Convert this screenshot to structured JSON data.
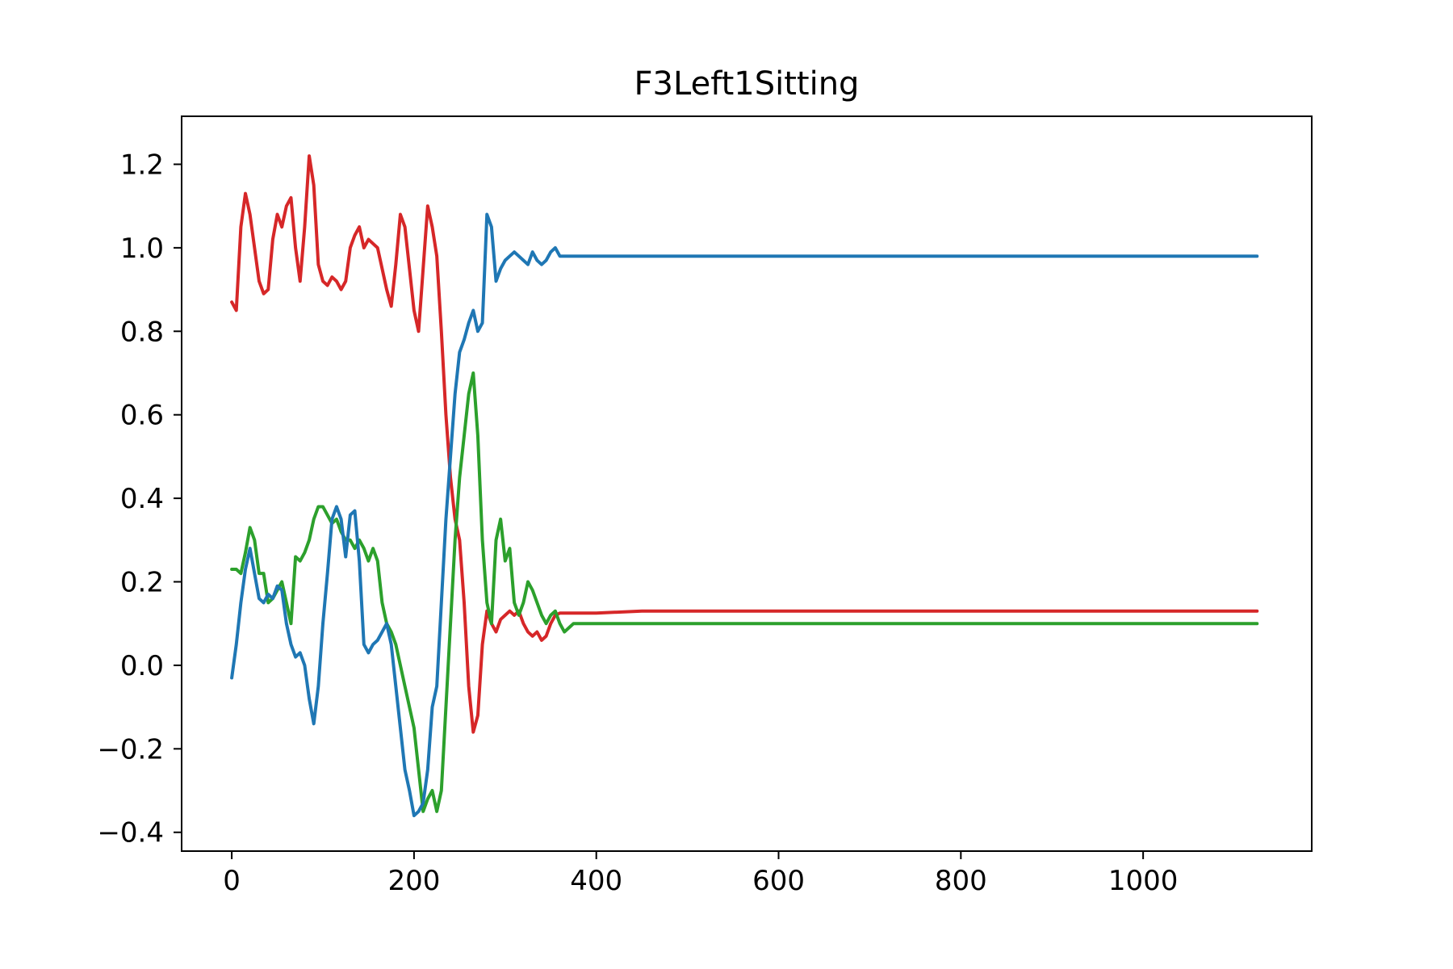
{
  "chart_data": {
    "type": "line",
    "title": "F3Left1Sitting",
    "xlabel": "",
    "ylabel": "",
    "xlim": [
      -55,
      1185
    ],
    "ylim": [
      -0.445,
      1.315
    ],
    "xticks": [
      0,
      200,
      400,
      600,
      800,
      1000
    ],
    "yticks": [
      -0.4,
      -0.2,
      0.0,
      0.2,
      0.4,
      0.6,
      0.8,
      1.0,
      1.2
    ],
    "ytick_labels": [
      "−0.4",
      "−0.2",
      "0.0",
      "0.2",
      "0.4",
      "0.6",
      "0.8",
      "1.0",
      "1.2"
    ],
    "grid": false,
    "legend": "none",
    "series": [
      {
        "color": "#d62728",
        "x": [
          0,
          5,
          10,
          15,
          20,
          25,
          30,
          35,
          40,
          45,
          50,
          55,
          60,
          65,
          70,
          75,
          80,
          85,
          90,
          95,
          100,
          105,
          110,
          115,
          120,
          125,
          130,
          135,
          140,
          145,
          150,
          155,
          160,
          165,
          170,
          175,
          180,
          185,
          190,
          195,
          200,
          205,
          210,
          215,
          220,
          225,
          230,
          235,
          240,
          245,
          250,
          255,
          260,
          265,
          270,
          275,
          280,
          285,
          290,
          295,
          300,
          305,
          310,
          315,
          320,
          325,
          330,
          335,
          340,
          345,
          350,
          355,
          360,
          365,
          370,
          375,
          380,
          390,
          400,
          450,
          500,
          550,
          600,
          650,
          700,
          750,
          800,
          850,
          900,
          950,
          1000,
          1050,
          1100,
          1125
        ],
        "values": [
          0.87,
          0.85,
          1.05,
          1.13,
          1.08,
          1.0,
          0.92,
          0.89,
          0.9,
          1.02,
          1.08,
          1.05,
          1.1,
          1.12,
          1.0,
          0.92,
          1.05,
          1.22,
          1.15,
          0.96,
          0.92,
          0.91,
          0.93,
          0.92,
          0.9,
          0.92,
          1.0,
          1.03,
          1.05,
          1.0,
          1.02,
          1.01,
          1.0,
          0.95,
          0.9,
          0.86,
          0.96,
          1.08,
          1.05,
          0.95,
          0.85,
          0.8,
          0.95,
          1.1,
          1.05,
          0.98,
          0.8,
          0.6,
          0.45,
          0.35,
          0.3,
          0.15,
          -0.05,
          -0.16,
          -0.12,
          0.05,
          0.13,
          0.1,
          0.08,
          0.11,
          0.12,
          0.13,
          0.12,
          0.13,
          0.1,
          0.08,
          0.07,
          0.08,
          0.06,
          0.07,
          0.1,
          0.12,
          0.125,
          0.125,
          0.125,
          0.125,
          0.125,
          0.125,
          0.125,
          0.13,
          0.13,
          0.13,
          0.13,
          0.13,
          0.13,
          0.13,
          0.13,
          0.13,
          0.13,
          0.13,
          0.13,
          0.13,
          0.13,
          0.13
        ]
      },
      {
        "color": "#2ca02c",
        "x": [
          0,
          5,
          10,
          15,
          20,
          25,
          30,
          35,
          40,
          45,
          50,
          55,
          60,
          65,
          70,
          75,
          80,
          85,
          90,
          95,
          100,
          105,
          110,
          115,
          120,
          125,
          130,
          135,
          140,
          145,
          150,
          155,
          160,
          165,
          170,
          175,
          180,
          185,
          190,
          195,
          200,
          205,
          210,
          215,
          220,
          225,
          230,
          235,
          240,
          245,
          250,
          255,
          260,
          265,
          270,
          275,
          280,
          285,
          290,
          295,
          300,
          305,
          310,
          315,
          320,
          325,
          330,
          335,
          340,
          345,
          350,
          355,
          360,
          365,
          370,
          375,
          380,
          390,
          400,
          450,
          500,
          550,
          600,
          650,
          700,
          750,
          800,
          850,
          900,
          950,
          1000,
          1050,
          1100,
          1125
        ],
        "values": [
          0.23,
          0.23,
          0.22,
          0.27,
          0.33,
          0.3,
          0.22,
          0.22,
          0.15,
          0.16,
          0.18,
          0.2,
          0.15,
          0.1,
          0.26,
          0.25,
          0.27,
          0.3,
          0.35,
          0.38,
          0.38,
          0.36,
          0.34,
          0.35,
          0.32,
          0.3,
          0.3,
          0.28,
          0.3,
          0.28,
          0.25,
          0.28,
          0.25,
          0.15,
          0.1,
          0.08,
          0.05,
          0.0,
          -0.05,
          -0.1,
          -0.15,
          -0.25,
          -0.35,
          -0.32,
          -0.3,
          -0.35,
          -0.3,
          -0.1,
          0.1,
          0.3,
          0.45,
          0.55,
          0.65,
          0.7,
          0.55,
          0.3,
          0.15,
          0.1,
          0.3,
          0.35,
          0.25,
          0.28,
          0.15,
          0.12,
          0.15,
          0.2,
          0.18,
          0.15,
          0.12,
          0.1,
          0.12,
          0.13,
          0.1,
          0.08,
          0.09,
          0.1,
          0.1,
          0.1,
          0.1,
          0.1,
          0.1,
          0.1,
          0.1,
          0.1,
          0.1,
          0.1,
          0.1,
          0.1,
          0.1,
          0.1,
          0.1,
          0.1,
          0.1,
          0.1
        ]
      },
      {
        "color": "#1f77b4",
        "x": [
          0,
          5,
          10,
          15,
          20,
          25,
          30,
          35,
          40,
          45,
          50,
          55,
          60,
          65,
          70,
          75,
          80,
          85,
          90,
          95,
          100,
          105,
          110,
          115,
          120,
          125,
          130,
          135,
          140,
          145,
          150,
          155,
          160,
          165,
          170,
          175,
          180,
          185,
          190,
          195,
          200,
          205,
          210,
          215,
          220,
          225,
          230,
          235,
          240,
          245,
          250,
          255,
          260,
          265,
          270,
          275,
          280,
          285,
          290,
          295,
          300,
          305,
          310,
          315,
          320,
          325,
          330,
          335,
          340,
          345,
          350,
          355,
          360,
          365,
          370,
          375,
          380,
          390,
          400,
          450,
          500,
          550,
          600,
          650,
          700,
          750,
          800,
          850,
          900,
          950,
          1000,
          1050,
          1100,
          1125
        ],
        "values": [
          -0.03,
          0.05,
          0.15,
          0.23,
          0.28,
          0.22,
          0.16,
          0.15,
          0.17,
          0.16,
          0.19,
          0.18,
          0.1,
          0.05,
          0.02,
          0.03,
          0.0,
          -0.08,
          -0.14,
          -0.05,
          0.1,
          0.22,
          0.35,
          0.38,
          0.35,
          0.26,
          0.36,
          0.37,
          0.25,
          0.05,
          0.03,
          0.05,
          0.06,
          0.08,
          0.1,
          0.05,
          -0.05,
          -0.15,
          -0.25,
          -0.3,
          -0.36,
          -0.35,
          -0.33,
          -0.25,
          -0.1,
          -0.05,
          0.15,
          0.35,
          0.5,
          0.65,
          0.75,
          0.78,
          0.82,
          0.85,
          0.8,
          0.82,
          1.08,
          1.05,
          0.92,
          0.95,
          0.97,
          0.98,
          0.99,
          0.98,
          0.97,
          0.96,
          0.99,
          0.97,
          0.96,
          0.97,
          0.99,
          1.0,
          0.98,
          0.98,
          0.98,
          0.98,
          0.98,
          0.98,
          0.98,
          0.98,
          0.98,
          0.98,
          0.98,
          0.98,
          0.98,
          0.98,
          0.98,
          0.98,
          0.98,
          0.98,
          0.98,
          0.98,
          0.98,
          0.98
        ]
      }
    ]
  }
}
